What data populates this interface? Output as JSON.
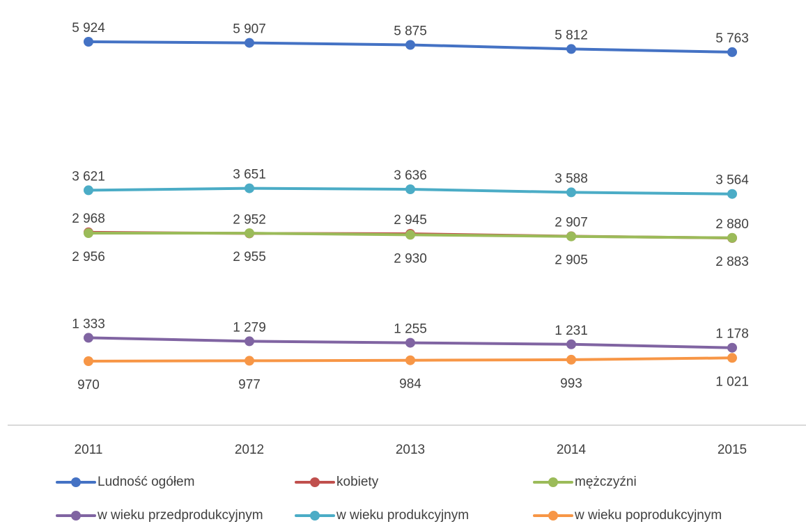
{
  "chart_data": {
    "type": "line",
    "title": "",
    "xlabel": "",
    "ylabel": "",
    "categories": [
      "2011",
      "2012",
      "2013",
      "2014",
      "2015"
    ],
    "legend_position": "bottom",
    "grid": false,
    "series": [
      {
        "name": "Ludność ogółem",
        "color": "#4472c4",
        "values": [
          5924,
          5907,
          5875,
          5812,
          5763
        ],
        "labels": [
          "5 924",
          "5 907",
          "5 875",
          "5 812",
          "5 763"
        ],
        "label_pos": "above"
      },
      {
        "name": "kobiety",
        "color": "#c0504d",
        "values": [
          2968,
          2952,
          2945,
          2907,
          2880
        ],
        "labels": [
          "2 968",
          "2 952",
          "2 945",
          "2 907",
          "2 880"
        ],
        "label_pos": "above"
      },
      {
        "name": "mężczyźni",
        "color": "#9bbb59",
        "values": [
          2956,
          2955,
          2930,
          2905,
          2883
        ],
        "labels": [
          "2 956",
          "2 955",
          "2 930",
          "2 905",
          "2 883"
        ],
        "label_pos": "below"
      },
      {
        "name": "w wieku przedprodukcyjnym",
        "color": "#8064a2",
        "values": [
          1333,
          1279,
          1255,
          1231,
          1178
        ],
        "labels": [
          "1 333",
          "1 279",
          "1 255",
          "1 231",
          "1 178"
        ],
        "label_pos": "above"
      },
      {
        "name": "w wieku produkcyjnym",
        "color": "#4bacc6",
        "values": [
          3621,
          3651,
          3636,
          3588,
          3564
        ],
        "labels": [
          "3 621",
          "3 651",
          "3 636",
          "3 588",
          "3 564"
        ],
        "label_pos": "above"
      },
      {
        "name": "w wieku poprodukcyjnym",
        "color": "#f79646",
        "values": [
          970,
          977,
          984,
          993,
          1021
        ],
        "labels": [
          "970",
          "977",
          "984",
          "993",
          "1 021"
        ],
        "label_pos": "below"
      }
    ],
    "axis_color": "#d9d9d9"
  }
}
